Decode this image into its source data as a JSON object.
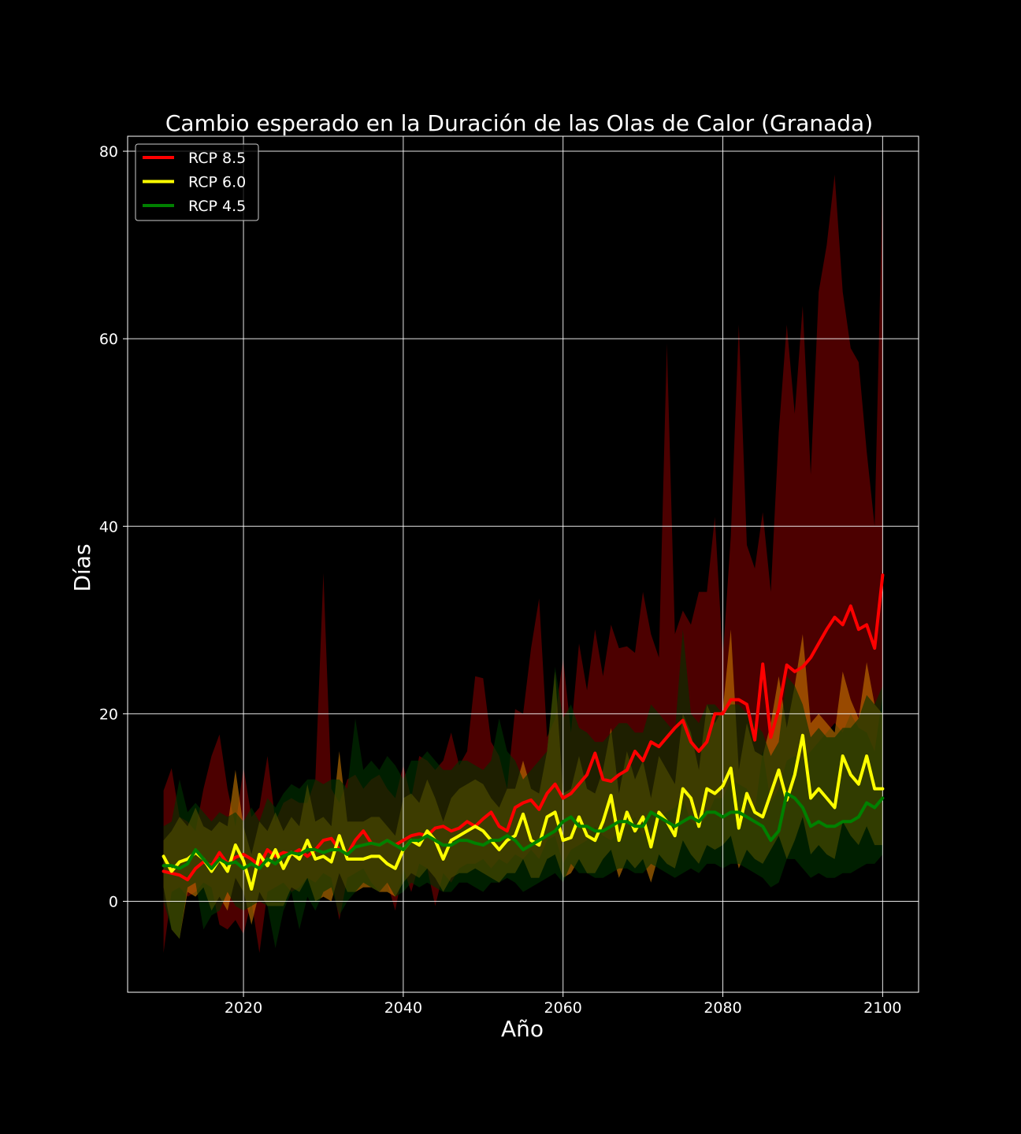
{
  "chart_data": {
    "type": "line",
    "title": "Cambio esperado en la Duración de las Olas de Calor (Granada)",
    "xlabel": "Año",
    "ylabel": "Días",
    "xlim": [
      2005.5,
      2104.5
    ],
    "ylim": [
      -9.7,
      81.6
    ],
    "x_ticks": [
      2020,
      2040,
      2060,
      2080,
      2100
    ],
    "y_ticks": [
      0,
      20,
      40,
      60,
      80
    ],
    "grid": true,
    "legend_position": "top-left",
    "background": "#000000",
    "x": [
      2010,
      2011,
      2012,
      2013,
      2014,
      2015,
      2016,
      2017,
      2018,
      2019,
      2020,
      2021,
      2022,
      2023,
      2024,
      2025,
      2026,
      2027,
      2028,
      2029,
      2030,
      2031,
      2032,
      2033,
      2034,
      2035,
      2036,
      2037,
      2038,
      2039,
      2040,
      2041,
      2042,
      2043,
      2044,
      2045,
      2046,
      2047,
      2048,
      2049,
      2050,
      2051,
      2052,
      2053,
      2054,
      2055,
      2056,
      2057,
      2058,
      2059,
      2060,
      2061,
      2062,
      2063,
      2064,
      2065,
      2066,
      2067,
      2068,
      2069,
      2070,
      2071,
      2072,
      2073,
      2074,
      2075,
      2076,
      2077,
      2078,
      2079,
      2080,
      2081,
      2082,
      2083,
      2084,
      2085,
      2086,
      2087,
      2088,
      2089,
      2090,
      2091,
      2092,
      2093,
      2094,
      2095,
      2096,
      2097,
      2098,
      2099,
      2100
    ],
    "series": [
      {
        "name": "RCP 8.5",
        "color": "#ff0000",
        "band_color": "#660000",
        "values": [
          3.2,
          3.0,
          2.8,
          2.3,
          3.5,
          4.2,
          3.8,
          5.2,
          4.0,
          4.7,
          5.0,
          4.5,
          3.8,
          5.5,
          4.8,
          5.2,
          5.0,
          5.5,
          4.8,
          5.5,
          6.5,
          6.7,
          5.5,
          5.0,
          6.5,
          7.5,
          6.2,
          6.0,
          6.5,
          6.0,
          6.5,
          7.0,
          7.2,
          7.0,
          7.8,
          8.0,
          7.5,
          7.8,
          8.5,
          8.0,
          8.8,
          9.5,
          8.0,
          7.5,
          10.0,
          10.5,
          10.8,
          9.8,
          11.5,
          12.5,
          11.0,
          11.5,
          12.5,
          13.5,
          15.8,
          13.0,
          12.8,
          13.5,
          14.0,
          16.0,
          15.0,
          17.0,
          16.5,
          17.5,
          18.5,
          19.3,
          17.0,
          16.0,
          17.0,
          20.0,
          20.0,
          21.5,
          21.5,
          21.0,
          17.2,
          25.3,
          17.5,
          20.5,
          25.2,
          24.5,
          25.0,
          26.0,
          27.5,
          29.0,
          30.3,
          29.5,
          31.5,
          29.0,
          29.5,
          27.0,
          34.8
        ],
        "lower": [
          -5.5,
          1.0,
          1.5,
          0.5,
          1.0,
          2.0,
          1.5,
          -2.5,
          -3.0,
          -2.0,
          -3.5,
          0.0,
          -5.5,
          1.0,
          1.5,
          2.0,
          1.0,
          1.5,
          2.5,
          2.0,
          3.0,
          2.5,
          -2.0,
          2.5,
          3.0,
          3.5,
          2.0,
          1.0,
          2.0,
          -1.0,
          3.5,
          1.0,
          4.0,
          3.5,
          -0.5,
          3.0,
          2.0,
          3.5,
          4.0,
          4.0,
          4.5,
          3.5,
          4.5,
          4.0,
          5.0,
          4.5,
          5.5,
          4.5,
          6.5,
          7.0,
          4.0,
          5.5,
          6.0,
          6.5,
          8.0,
          7.0,
          6.5,
          7.5,
          8.0,
          9.0,
          7.0,
          9.5,
          9.0,
          9.5,
          10.0,
          11.0,
          8.5,
          8.0,
          9.0,
          11.0,
          11.0,
          13.0,
          12.5,
          12.0,
          9.5,
          16.0,
          10.5,
          12.0,
          15.0,
          15.5,
          15.0,
          16.0,
          17.0,
          18.0,
          19.0,
          18.0,
          20.0,
          18.5,
          18.0,
          16.0,
          22.0
        ],
        "upper": [
          11.8,
          14.2,
          9.0,
          8.5,
          7.5,
          12.0,
          15.5,
          17.8,
          12.0,
          8.0,
          14.3,
          9.0,
          10.0,
          15.5,
          8.5,
          10.5,
          11.0,
          10.5,
          10.5,
          13.0,
          35.0,
          12.0,
          10.5,
          13.0,
          13.5,
          12.0,
          13.0,
          13.5,
          12.0,
          11.0,
          14.5,
          11.0,
          15.5,
          15.0,
          14.0,
          15.0,
          18.0,
          14.5,
          16.0,
          24.0,
          23.8,
          17.0,
          15.5,
          12.0,
          20.5,
          20.0,
          27.0,
          32.3,
          17.5,
          19.5,
          26.0,
          18.0,
          27.5,
          22.5,
          29.0,
          24.0,
          29.5,
          27.0,
          27.2,
          26.5,
          33.0,
          28.5,
          26.0,
          59.5,
          28.5,
          31.0,
          29.5,
          33.0,
          33.0,
          41.0,
          26.0,
          39.0,
          61.5,
          38.0,
          35.5,
          41.5,
          33.0,
          50.0,
          61.5,
          52.0,
          63.5,
          45.5,
          65.0,
          70.0,
          77.5,
          65.0,
          59.0,
          57.5,
          48.0,
          40.0,
          77.0
        ]
      },
      {
        "name": "RCP 6.0",
        "color": "#ffff00",
        "band_color": "#cc7a00",
        "values": [
          4.8,
          3.2,
          4.2,
          4.5,
          5.2,
          4.5,
          3.2,
          4.5,
          3.2,
          6.0,
          4.3,
          1.3,
          5.0,
          3.8,
          5.5,
          3.5,
          5.2,
          4.5,
          6.5,
          4.5,
          4.8,
          4.2,
          7.0,
          4.5,
          4.5,
          4.5,
          4.8,
          4.8,
          4.0,
          3.5,
          5.5,
          6.5,
          6.0,
          7.5,
          6.5,
          4.5,
          6.5,
          7.0,
          7.5,
          8.0,
          7.5,
          6.5,
          5.5,
          6.5,
          7.0,
          9.3,
          6.5,
          6.0,
          9.0,
          9.5,
          6.5,
          6.8,
          9.0,
          7.0,
          6.5,
          8.5,
          11.3,
          6.5,
          9.5,
          7.5,
          9.0,
          5.8,
          9.5,
          8.5,
          7.0,
          12.0,
          11.0,
          8.0,
          12.0,
          11.5,
          12.3,
          14.2,
          7.8,
          11.5,
          9.5,
          9.0,
          11.5,
          14.0,
          10.8,
          13.5,
          17.7,
          11.0,
          12.0,
          11.0,
          10.0,
          15.5,
          13.5,
          12.5,
          15.5,
          12.0,
          12.0
        ],
        "lower": [
          1.5,
          -3.0,
          -4.0,
          1.0,
          0.5,
          1.5,
          -1.0,
          0.5,
          -1.0,
          2.5,
          1.0,
          -2.5,
          1.0,
          -0.5,
          -0.5,
          -0.5,
          1.5,
          1.0,
          2.5,
          0.0,
          0.5,
          0.0,
          3.0,
          1.0,
          1.0,
          1.5,
          1.5,
          1.0,
          1.0,
          0.5,
          2.0,
          3.0,
          2.5,
          3.5,
          2.5,
          1.0,
          2.5,
          3.0,
          3.0,
          3.5,
          3.0,
          2.5,
          2.0,
          3.0,
          3.0,
          4.5,
          2.5,
          2.5,
          4.5,
          5.0,
          2.5,
          3.0,
          4.5,
          3.0,
          3.0,
          4.5,
          5.5,
          2.5,
          4.5,
          3.5,
          4.5,
          2.0,
          5.0,
          4.0,
          3.5,
          6.5,
          5.0,
          4.0,
          6.0,
          5.5,
          6.0,
          7.0,
          3.5,
          5.5,
          4.5,
          4.0,
          5.5,
          7.0,
          4.5,
          6.5,
          9.0,
          5.0,
          6.0,
          5.0,
          4.5,
          8.5,
          7.0,
          6.0,
          8.0,
          6.0,
          6.0
        ],
        "upper": [
          6.5,
          7.5,
          9.0,
          8.0,
          10.0,
          8.0,
          7.5,
          8.5,
          8.0,
          14.0,
          8.0,
          5.0,
          8.5,
          7.5,
          9.5,
          7.5,
          9.0,
          8.0,
          12.5,
          8.5,
          9.0,
          8.0,
          16.0,
          8.5,
          8.5,
          8.5,
          9.0,
          9.0,
          8.0,
          7.0,
          11.0,
          11.5,
          10.5,
          13.0,
          11.0,
          8.5,
          11.0,
          12.0,
          12.5,
          13.0,
          12.5,
          11.0,
          10.0,
          12.0,
          12.0,
          15.0,
          12.0,
          11.5,
          16.0,
          24.5,
          11.5,
          12.0,
          15.5,
          12.0,
          11.5,
          14.0,
          18.5,
          11.5,
          16.0,
          13.0,
          15.0,
          11.0,
          15.5,
          14.0,
          12.5,
          20.0,
          18.0,
          14.0,
          21.0,
          19.0,
          20.5,
          29.0,
          14.0,
          19.0,
          16.0,
          15.5,
          19.0,
          24.0,
          18.5,
          23.0,
          28.5,
          19.0,
          20.0,
          19.0,
          18.0,
          24.5,
          21.5,
          19.5,
          25.5,
          21.0,
          20.0
        ]
      },
      {
        "name": "RCP 4.5",
        "color": "#008000",
        "band_color": "#003300",
        "values": [
          3.8,
          3.8,
          3.5,
          4.0,
          5.5,
          4.5,
          3.5,
          4.5,
          4.0,
          4.2,
          3.5,
          4.0,
          3.5,
          4.5,
          4.0,
          4.8,
          5.2,
          5.0,
          5.5,
          5.5,
          5.2,
          5.5,
          5.5,
          5.0,
          5.8,
          6.0,
          6.2,
          6.0,
          6.5,
          6.0,
          5.5,
          6.5,
          6.5,
          7.0,
          6.5,
          6.0,
          6.0,
          6.5,
          6.5,
          6.2,
          6.0,
          6.5,
          6.5,
          7.0,
          6.5,
          5.5,
          6.0,
          6.5,
          7.0,
          7.5,
          8.5,
          9.0,
          8.0,
          8.0,
          7.5,
          7.5,
          8.0,
          8.5,
          8.5,
          8.0,
          8.0,
          9.5,
          9.0,
          8.5,
          8.0,
          8.5,
          9.0,
          8.5,
          9.5,
          9.5,
          9.0,
          9.5,
          9.5,
          9.0,
          8.5,
          8.0,
          6.5,
          7.5,
          11.5,
          11.0,
          10.0,
          8.0,
          8.5,
          8.0,
          8.0,
          8.5,
          8.5,
          9.0,
          10.5,
          10.0,
          11.0
        ],
        "lower": [
          0.0,
          -3.0,
          -4.0,
          1.5,
          2.0,
          -3.0,
          -1.5,
          -1.0,
          1.0,
          -0.5,
          -1.0,
          -0.5,
          0.0,
          -0.5,
          -5.0,
          -1.0,
          1.0,
          -3.0,
          0.5,
          -1.0,
          1.0,
          1.5,
          -1.5,
          0.0,
          1.0,
          2.0,
          1.5,
          1.0,
          2.0,
          0.5,
          1.0,
          2.0,
          1.5,
          2.0,
          1.5,
          1.0,
          1.0,
          2.0,
          2.0,
          1.5,
          1.0,
          2.0,
          2.0,
          2.5,
          2.0,
          1.0,
          1.5,
          2.0,
          2.5,
          3.0,
          2.0,
          4.0,
          3.0,
          3.0,
          2.5,
          2.5,
          3.0,
          3.5,
          3.5,
          3.0,
          3.0,
          4.0,
          3.5,
          3.0,
          2.5,
          3.0,
          3.5,
          3.0,
          4.0,
          4.0,
          3.5,
          4.0,
          4.0,
          3.5,
          3.0,
          2.5,
          1.5,
          2.0,
          4.5,
          4.5,
          3.5,
          2.5,
          3.0,
          2.5,
          2.5,
          3.0,
          3.0,
          3.5,
          4.0,
          4.0,
          5.0
        ],
        "upper": [
          8.0,
          8.5,
          13.0,
          9.5,
          10.5,
          9.5,
          8.5,
          9.5,
          9.0,
          9.5,
          8.5,
          10.0,
          8.5,
          11.0,
          10.0,
          11.5,
          12.5,
          12.0,
          13.0,
          13.0,
          12.5,
          13.0,
          13.0,
          12.0,
          19.5,
          14.0,
          15.0,
          14.0,
          15.5,
          14.5,
          13.0,
          15.0,
          15.0,
          16.0,
          15.0,
          14.0,
          14.0,
          15.0,
          15.0,
          14.5,
          14.0,
          15.0,
          19.5,
          16.0,
          15.0,
          13.0,
          14.0,
          15.0,
          16.0,
          25.0,
          19.5,
          21.0,
          18.5,
          18.0,
          17.0,
          17.0,
          18.0,
          19.0,
          19.0,
          18.0,
          18.0,
          21.0,
          20.0,
          19.0,
          18.0,
          29.0,
          20.0,
          19.0,
          21.0,
          21.0,
          20.0,
          21.0,
          21.0,
          20.0,
          19.0,
          18.0,
          15.5,
          17.0,
          24.0,
          23.0,
          21.0,
          17.5,
          18.5,
          17.5,
          17.5,
          18.5,
          18.5,
          19.5,
          22.0,
          21.0,
          23.0
        ]
      }
    ]
  }
}
